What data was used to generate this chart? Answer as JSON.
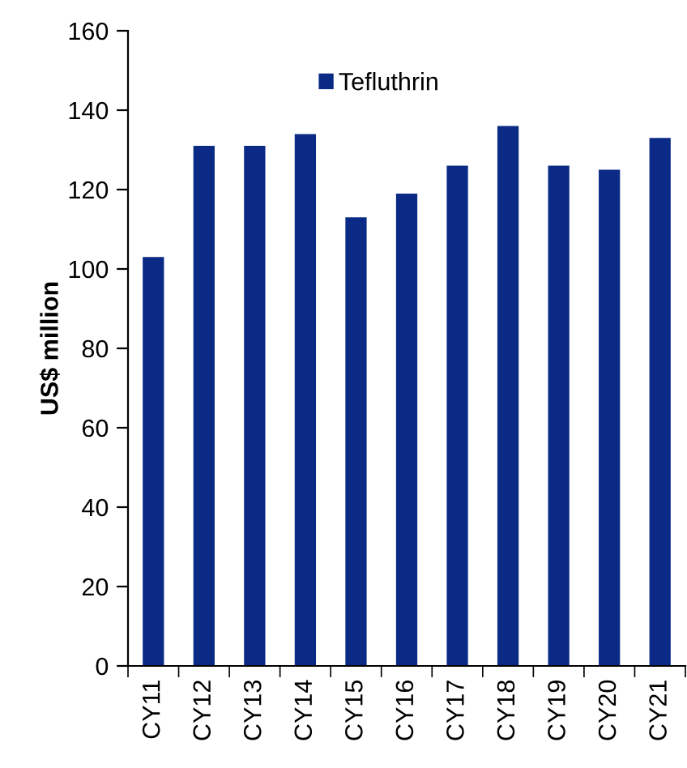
{
  "chart_data": {
    "type": "bar",
    "ylabel": "US$ million",
    "categories": [
      "CY11",
      "CY12",
      "CY13",
      "CY14",
      "CY15",
      "CY16",
      "CY17",
      "CY18",
      "CY19",
      "CY20",
      "CY21"
    ],
    "series": [
      {
        "name": "Tefluthrin",
        "color": "#0b2a85",
        "values": [
          103,
          131,
          131,
          134,
          113,
          119,
          126,
          136,
          126,
          125,
          133
        ]
      }
    ],
    "ylim": [
      0,
      160
    ],
    "yticks": [
      0,
      20,
      40,
      60,
      80,
      100,
      120,
      140,
      160
    ],
    "grid": false,
    "legend": "top"
  }
}
